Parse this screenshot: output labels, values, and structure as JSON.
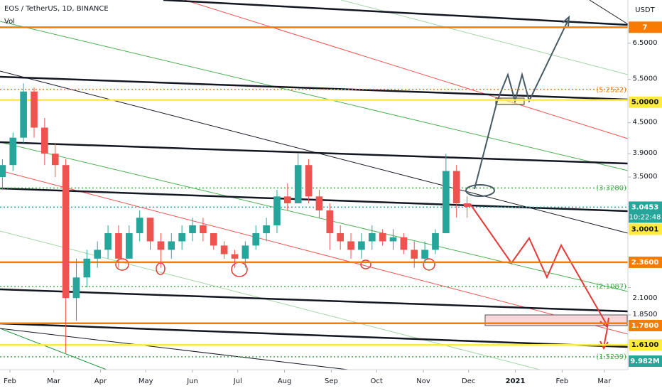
{
  "chart_data": {
    "type": "candlestick",
    "title": "EOS / TetherUS, 1D, BINANCE",
    "subtitle": "Vol",
    "y_axis_label": "USDT",
    "log_scale": true,
    "xlim": [
      25.4,
      441.6
    ],
    "ylim": [
      1.436,
      7.94
    ],
    "xticks": [
      {
        "value": 32,
        "label": "Feb"
      },
      {
        "value": 61,
        "label": "Mar"
      },
      {
        "value": 92,
        "label": "Apr"
      },
      {
        "value": 122,
        "label": "May"
      },
      {
        "value": 153,
        "label": "Jun"
      },
      {
        "value": 183,
        "label": "Jul"
      },
      {
        "value": 214,
        "label": "Aug"
      },
      {
        "value": 245,
        "label": "Sep"
      },
      {
        "value": 275,
        "label": "Oct"
      },
      {
        "value": 306,
        "label": "Nov"
      },
      {
        "value": 336,
        "label": "Dec"
      },
      {
        "value": 367,
        "label": "2021"
      },
      {
        "value": 398,
        "label": "Feb"
      },
      {
        "value": 426,
        "label": "Mar"
      }
    ],
    "yticks": [
      {
        "value": 6.5,
        "label": "6.5000"
      },
      {
        "value": 5.5,
        "label": "5.5000"
      },
      {
        "value": 4.5,
        "label": "4.5000"
      },
      {
        "value": 3.9,
        "label": "3.9000"
      },
      {
        "value": 3.5,
        "label": "3.5000"
      },
      {
        "value": 2.1,
        "label": "2.1000"
      },
      {
        "value": 1.85,
        "label": "1.8500"
      }
    ],
    "levels": [
      {
        "value": 7,
        "label": "7",
        "color": "#f57c00",
        "style": "solid",
        "boxed": true
      },
      {
        "value": 5.2522,
        "label": "(5.2522)",
        "color": "#f57c00",
        "style": "dotted",
        "boxed": false
      },
      {
        "value": 5.0,
        "label": "5.0000",
        "color": "#ffeb3b",
        "style": "solid",
        "boxed": true
      },
      {
        "value": 3.328,
        "label": "(3.3280)",
        "color": "#4caf50",
        "style": "dotted",
        "boxed": false
      },
      {
        "value": 3.0453,
        "label": "3.0453",
        "color": "#26a69a",
        "style": "dotted",
        "boxed": true,
        "countdown": "10:22:48"
      },
      {
        "value": 3.0001,
        "label": "3.0001",
        "color": "#ffeb3b",
        "style": "none",
        "boxed": true
      },
      {
        "value": 2.36,
        "label": "2.3600",
        "color": "#f57c00",
        "style": "solid",
        "boxed": true
      },
      {
        "value": 2.1087,
        "label": "(2.1087)",
        "color": "#4caf50",
        "style": "dotted",
        "boxed": false
      },
      {
        "value": 1.78,
        "label": "1.7800",
        "color": "#f57c00",
        "style": "solid",
        "boxed": true
      },
      {
        "value": 1.61,
        "label": "1.6100",
        "color": "#ffeb3b",
        "style": "solid",
        "boxed": true
      },
      {
        "value": 1.5239,
        "label": "(1.5239)",
        "color": "#4caf50",
        "style": "dotted",
        "boxed": false
      }
    ],
    "volume_label": "9.982M",
    "up_color": "#26a69a",
    "down_color": "#ef5350",
    "x": [
      27,
      34,
      41,
      48,
      55,
      62,
      69,
      76,
      83,
      90,
      97,
      104,
      111,
      118,
      125,
      132,
      139,
      146,
      153,
      160,
      167,
      174,
      181,
      188,
      195,
      202,
      209,
      216,
      223,
      230,
      237,
      244,
      251,
      258,
      265,
      272,
      279,
      286,
      293,
      300,
      307,
      314,
      321,
      328,
      335
    ],
    "open": [
      3.5,
      3.7,
      4.2,
      5.2,
      4.4,
      3.9,
      3.7,
      2.0,
      2.2,
      2.4,
      2.5,
      2.7,
      2.4,
      2.7,
      2.9,
      2.6,
      2.5,
      2.6,
      2.7,
      2.8,
      2.7,
      2.55,
      2.45,
      2.4,
      2.55,
      2.7,
      2.8,
      3.2,
      3.1,
      3.7,
      3.2,
      3.0,
      2.7,
      2.6,
      2.5,
      2.6,
      2.7,
      2.6,
      2.65,
      2.5,
      2.4,
      2.5,
      2.7,
      3.6,
      3.1
    ],
    "high": [
      3.8,
      4.3,
      5.4,
      5.3,
      4.6,
      4.1,
      3.8,
      2.4,
      2.5,
      2.6,
      2.8,
      2.8,
      2.8,
      3.0,
      2.9,
      2.7,
      2.7,
      2.8,
      2.9,
      2.9,
      2.7,
      2.6,
      2.5,
      2.6,
      2.8,
      2.9,
      3.3,
      3.4,
      3.9,
      3.8,
      3.3,
      3.1,
      2.8,
      2.7,
      2.7,
      2.8,
      2.75,
      2.75,
      2.7,
      2.6,
      2.6,
      2.75,
      3.9,
      3.7,
      3.2
    ],
    "low": [
      3.3,
      3.6,
      4.1,
      4.2,
      3.7,
      3.5,
      1.55,
      1.8,
      2.1,
      2.3,
      2.4,
      2.3,
      2.4,
      2.6,
      2.5,
      2.3,
      2.4,
      2.5,
      2.6,
      2.6,
      2.5,
      2.4,
      2.3,
      2.3,
      2.5,
      2.6,
      2.7,
      3.0,
      3.1,
      3.1,
      2.9,
      2.5,
      2.5,
      2.4,
      2.4,
      2.5,
      2.55,
      2.5,
      2.45,
      2.3,
      2.35,
      2.45,
      2.7,
      2.9,
      2.9
    ],
    "close": [
      3.7,
      4.2,
      5.2,
      4.4,
      3.9,
      3.7,
      2.0,
      2.2,
      2.4,
      2.5,
      2.7,
      2.4,
      2.7,
      2.9,
      2.6,
      2.5,
      2.6,
      2.7,
      2.8,
      2.7,
      2.55,
      2.45,
      2.4,
      2.55,
      2.7,
      2.8,
      3.2,
      3.1,
      3.7,
      3.2,
      3.0,
      2.7,
      2.6,
      2.5,
      2.6,
      2.7,
      2.6,
      2.65,
      2.5,
      2.4,
      2.5,
      2.7,
      3.6,
      3.1,
      3.05
    ]
  }
}
